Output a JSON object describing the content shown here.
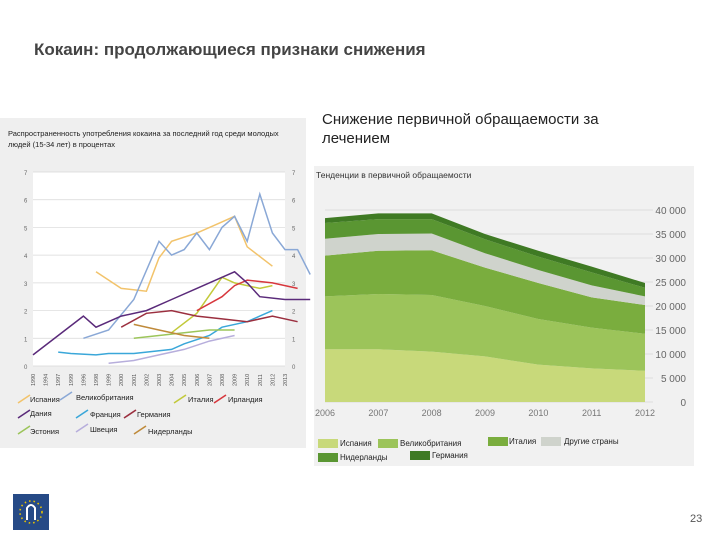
{
  "slide": {
    "title": "Кокаин: продолжающиеся признаки снижения",
    "page_number": "23"
  },
  "chart_data": [
    {
      "type": "line",
      "title": "Распространенность употребления кокаина за последний год среди молодых людей (15-34 лет) в процентах",
      "categories": [
        "1990",
        "1994",
        "1997",
        "1999",
        "1996",
        "1998",
        "1999",
        "2000",
        "2001",
        "2002",
        "2003",
        "2004",
        "2005",
        "2006",
        "2007",
        "2008",
        "2009",
        "2010",
        "2011",
        "2012",
        "2013"
      ],
      "ylim": [
        0,
        7
      ],
      "yticks": [
        0,
        1,
        2,
        3,
        4,
        5,
        6,
        7
      ],
      "grid": true,
      "series": [
        {
          "name": "Испания",
          "color": "#f2c36b",
          "points": [
            [
              5,
              3.4
            ],
            [
              7,
              2.8
            ],
            [
              9,
              2.7
            ],
            [
              10,
              3.9
            ],
            [
              11,
              4.5
            ],
            [
              13,
              4.8
            ],
            [
              15,
              5.2
            ],
            [
              16,
              5.4
            ],
            [
              17,
              4.3
            ],
            [
              19,
              3.6
            ]
          ]
        },
        {
          "name": "Великобритания",
          "color": "#8aa8d6",
          "points": [
            [
              4,
              1.0
            ],
            [
              6,
              1.3
            ],
            [
              8,
              2.4
            ],
            [
              10,
              4.5
            ],
            [
              11,
              4.0
            ],
            [
              12,
              4.2
            ],
            [
              13,
              4.8
            ],
            [
              14,
              4.2
            ],
            [
              15,
              5.0
            ],
            [
              16,
              5.4
            ],
            [
              17,
              4.5
            ],
            [
              18,
              6.2
            ],
            [
              19,
              4.8
            ],
            [
              20,
              4.2
            ],
            [
              21,
              4.2
            ],
            [
              22,
              3.3
            ]
          ]
        },
        {
          "name": "Италия",
          "color": "#c2c93a",
          "points": [
            [
              11,
              1.2
            ],
            [
              13,
              1.9
            ],
            [
              15,
              3.2
            ],
            [
              16,
              3.0
            ],
            [
              17,
              2.9
            ],
            [
              18,
              2.8
            ],
            [
              19,
              2.9
            ]
          ]
        },
        {
          "name": "Ирландия",
          "color": "#d7373d",
          "points": [
            [
              13,
              2.0
            ],
            [
              15,
              2.5
            ],
            [
              16,
              2.9
            ],
            [
              17,
              3.1
            ],
            [
              19,
              3.0
            ],
            [
              21,
              2.8
            ]
          ]
        },
        {
          "name": "Дания",
          "color": "#5a2a7a",
          "points": [
            [
              0,
              0.4
            ],
            [
              4,
              1.8
            ],
            [
              5,
              1.4
            ],
            [
              7,
              1.8
            ],
            [
              9,
              2.0
            ],
            [
              11,
              2.4
            ],
            [
              13,
              2.8
            ],
            [
              15,
              3.2
            ],
            [
              16,
              3.4
            ],
            [
              17,
              3.0
            ],
            [
              18,
              2.5
            ],
            [
              20,
              2.4
            ],
            [
              22,
              2.4
            ]
          ]
        },
        {
          "name": "Франция",
          "color": "#3aa7d9",
          "points": [
            [
              2,
              0.5
            ],
            [
              3,
              0.45
            ],
            [
              5,
              0.4
            ],
            [
              6,
              0.45
            ],
            [
              8,
              0.45
            ],
            [
              9,
              0.5
            ],
            [
              11,
              0.6
            ],
            [
              12,
              0.8
            ],
            [
              14,
              1.1
            ],
            [
              15,
              1.4
            ],
            [
              17,
              1.6
            ],
            [
              18,
              1.8
            ],
            [
              19,
              2.0
            ]
          ]
        },
        {
          "name": "Германия",
          "color": "#9b2f3f",
          "points": [
            [
              7,
              1.4
            ],
            [
              9,
              1.9
            ],
            [
              11,
              2.0
            ],
            [
              13,
              1.8
            ],
            [
              15,
              1.7
            ],
            [
              17,
              1.6
            ],
            [
              19,
              1.8
            ],
            [
              21,
              1.6
            ]
          ]
        },
        {
          "name": "Эстония",
          "color": "#9cc55a",
          "points": [
            [
              8,
              1.0
            ],
            [
              10,
              1.1
            ],
            [
              12,
              1.2
            ],
            [
              14,
              1.3
            ],
            [
              16,
              1.3
            ]
          ]
        },
        {
          "name": "Швеция",
          "color": "#b7aedc",
          "points": [
            [
              6,
              0.1
            ],
            [
              8,
              0.2
            ],
            [
              10,
              0.4
            ],
            [
              12,
              0.6
            ],
            [
              14,
              0.9
            ],
            [
              16,
              1.1
            ]
          ]
        },
        {
          "name": "Нидерланды",
          "color": "#bf8a3a",
          "points": [
            [
              8,
              1.5
            ],
            [
              10,
              1.3
            ],
            [
              12,
              1.1
            ],
            [
              14,
              1.0
            ]
          ]
        }
      ]
    },
    {
      "type": "area",
      "heading": "Снижение первичной обращаемости за лечением",
      "title": "Тенденции в первичной обращаемости",
      "x": [
        "2006",
        "2007",
        "2008",
        "2009",
        "2010",
        "2011",
        "2012"
      ],
      "ylim": [
        0,
        40000
      ],
      "yticks_labels": [
        "0",
        "5 000",
        "10 000",
        "15 000",
        "20 000",
        "25 000",
        "30 000",
        "35 000",
        "40 000"
      ],
      "series": [
        {
          "name": "Испания",
          "color": "#c8d97a",
          "values": [
            11000,
            11000,
            10500,
            9500,
            7800,
            7000,
            6500
          ]
        },
        {
          "name": "Великобритания",
          "color": "#9cc45a",
          "values": [
            11000,
            11500,
            11800,
            10500,
            9500,
            8500,
            7700
          ]
        },
        {
          "name": "Италия",
          "color": "#7aad3e",
          "values": [
            8500,
            9000,
            9300,
            8000,
            7500,
            6300,
            6000
          ]
        },
        {
          "name": "Другие страны",
          "color": "#cfd3cc",
          "values": [
            3500,
            3500,
            3500,
            3000,
            2700,
            2500,
            1800
          ]
        },
        {
          "name": "Нидерланды",
          "color": "#5a9632",
          "values": [
            3300,
            3100,
            3000,
            2900,
            2800,
            2700,
            1800
          ]
        },
        {
          "name": "Германия",
          "color": "#3f7a24",
          "values": [
            1000,
            1200,
            1200,
            1100,
            1200,
            1200,
            1000
          ]
        }
      ]
    }
  ]
}
